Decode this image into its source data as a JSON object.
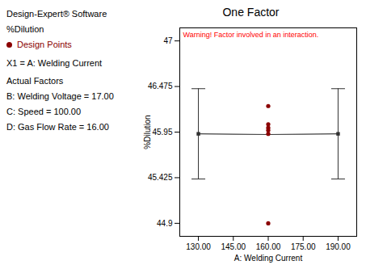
{
  "chart_data": {
    "type": "line",
    "title": "One Factor",
    "xlabel": "A: Welding Current",
    "ylabel": "%Dilution",
    "xlim": [
      122,
      198
    ],
    "ylim": [
      44.75,
      47.15
    ],
    "xticks": [
      {
        "value": 130.0,
        "label": "130.00"
      },
      {
        "value": 145.0,
        "label": "145.00"
      },
      {
        "value": 160.0,
        "label": "160.00"
      },
      {
        "value": 175.0,
        "label": "175.00"
      },
      {
        "value": 190.0,
        "label": "190.00"
      }
    ],
    "yticks": [
      44.9,
      45.425,
      45.95,
      46.475,
      47
    ],
    "annotations": [
      {
        "text": "Warning! Factor involved in an interaction.",
        "color": "red"
      }
    ],
    "header": [
      "Design-Expert® Software",
      "%Dilution"
    ],
    "notes": [
      "X1 = A: Welding Current",
      "Actual Factors",
      "B: Welding Voltage = 17.00",
      "C: Speed = 100.00",
      "D: Gas Flow Rate = 16.00"
    ],
    "legend": "left",
    "series": [
      {
        "type": "line",
        "color": "#404040",
        "x": [
          130.0,
          145.0,
          160.0,
          175.0,
          190.0
        ],
        "values": [
          45.93,
          45.926,
          45.922,
          45.926,
          45.93
        ]
      },
      {
        "type": "errorbar",
        "color": "#303030",
        "marker": "square",
        "x": [
          130.0,
          190.0
        ],
        "values": [
          45.93,
          45.93
        ],
        "yerr": [
          0.52,
          0.52
        ]
      },
      {
        "type": "scatter",
        "name": "Design Points",
        "color": "#8B0000",
        "marker": "circle",
        "x": [
          160.0,
          160.0,
          160.0,
          160.0,
          160.0,
          160.0
        ],
        "values": [
          46.25,
          46.04,
          46.0,
          45.97,
          45.93,
          44.9
        ]
      }
    ]
  }
}
